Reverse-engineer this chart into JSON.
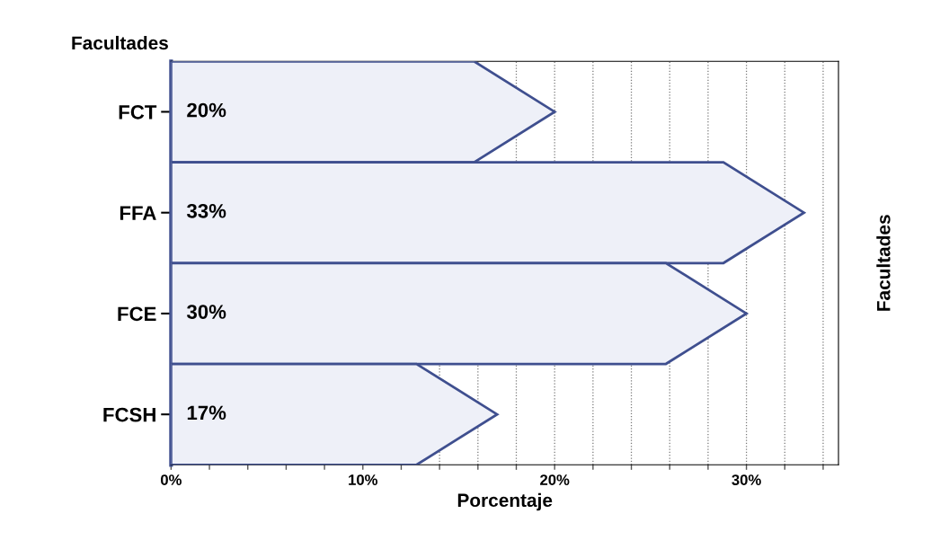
{
  "chart_data": {
    "type": "bar",
    "orientation": "horizontal",
    "categories": [
      "FCT",
      "FFA",
      "FCE",
      "FCSH"
    ],
    "values": [
      20,
      33,
      30,
      17
    ],
    "color": "#eef0f8",
    "value_labels": [
      "20%",
      "33%",
      "30%",
      "17%"
    ],
    "ylabel": "Facultades",
    "y2label": "Facultades",
    "xlabel": "Porcentaje",
    "xlim": [
      0,
      34.8
    ],
    "xticks": [
      {
        "value": 0,
        "label": "0%"
      },
      {
        "value": 2,
        "label": null
      },
      {
        "value": 4,
        "label": null
      },
      {
        "value": 6,
        "label": null
      },
      {
        "value": 8,
        "label": null
      },
      {
        "value": 10,
        "label": "10%"
      },
      {
        "value": 12,
        "label": null
      },
      {
        "value": 14,
        "label": null
      },
      {
        "value": 16,
        "label": null
      },
      {
        "value": 18,
        "label": null
      },
      {
        "value": 20,
        "label": "20%"
      },
      {
        "value": 22,
        "label": null
      },
      {
        "value": 24,
        "label": null
      },
      {
        "value": 26,
        "label": null
      },
      {
        "value": 28,
        "label": null
      },
      {
        "value": 30,
        "label": "30%"
      },
      {
        "value": 32,
        "label": null
      },
      {
        "value": 34,
        "label": null
      }
    ],
    "grid": "x",
    "legend": false
  }
}
